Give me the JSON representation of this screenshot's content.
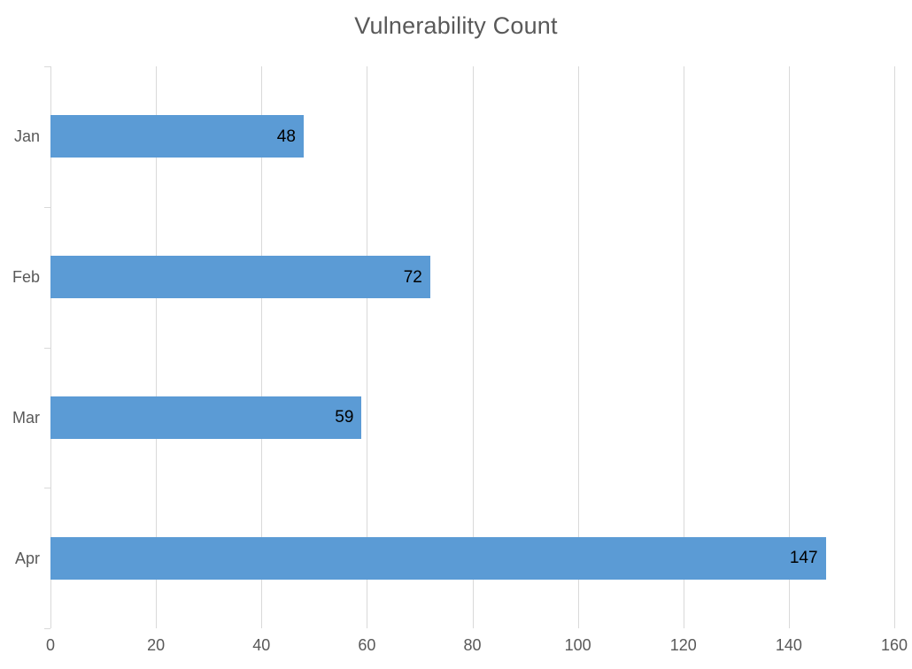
{
  "chart_data": {
    "type": "bar",
    "orientation": "horizontal",
    "title": "Vulnerability Count",
    "categories": [
      "Jan",
      "Feb",
      "Mar",
      "Apr"
    ],
    "values": [
      48,
      72,
      59,
      147
    ],
    "data_labels": [
      "48",
      "72",
      "59",
      "147"
    ],
    "xlabel": "",
    "ylabel": "",
    "xlim": [
      0,
      160
    ],
    "x_tick_step": 20,
    "x_tick_labels": [
      "0",
      "20",
      "40",
      "60",
      "80",
      "100",
      "120",
      "140",
      "160"
    ],
    "grid": "vertical",
    "legend": "none",
    "colors": {
      "bar": "#5b9bd5",
      "gridline": "#d9d9d9",
      "axis_text": "#595959",
      "title_text": "#595959",
      "data_label": "#000000",
      "background": "#ffffff"
    }
  }
}
